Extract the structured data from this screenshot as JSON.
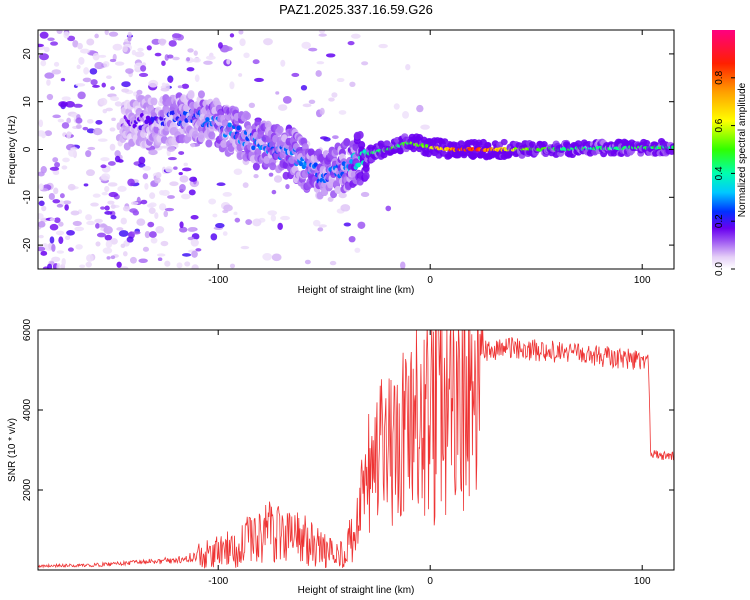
{
  "title": "PAZ1.2025.337.16.59.G26",
  "chart_data": [
    {
      "type": "heatmap",
      "title": "PAZ1.2025.337.16.59.G26",
      "xlabel": "Height of straight line (km)",
      "ylabel": "Frequency (Hz)",
      "xlim": [
        -185,
        115
      ],
      "ylim": [
        -25,
        25
      ],
      "xticks": [
        -100,
        0,
        100
      ],
      "xtick_labels": [
        "-100",
        "0",
        "100"
      ],
      "yticks": [
        -20,
        -10,
        0,
        10,
        20
      ],
      "ytick_labels": [
        "-20",
        "-10",
        "0",
        "10",
        "20"
      ],
      "colorbar": {
        "label": "Normalized spectral amplitude",
        "range": [
          0,
          1
        ],
        "ticks": [
          0.0,
          0.2,
          0.4,
          0.6,
          0.8
        ],
        "tick_labels": [
          "0.0",
          "0.2",
          "0.4",
          "0.6",
          "0.8"
        ],
        "colors": [
          "#ffffff",
          "#e5cff7",
          "#9a52f2",
          "#6a00f0",
          "#0030ff",
          "#00c8ff",
          "#00ffb0",
          "#30ff00",
          "#ffff00",
          "#ffa000",
          "#ff2000",
          "#ff0080"
        ]
      },
      "ridge": {
        "x": [
          -185,
          -150,
          -130,
          -110,
          -95,
          -80,
          -65,
          -50,
          -42,
          -30,
          -20,
          -10,
          0,
          10,
          20,
          40,
          60,
          80,
          100,
          115
        ],
        "freq": [
          3,
          5,
          6,
          7,
          4,
          1,
          -1,
          -6,
          -4,
          -1,
          0,
          1.5,
          0.5,
          0,
          0,
          0,
          0.1,
          0.3,
          0.4,
          0.5
        ],
        "amplitude": [
          0.12,
          0.15,
          0.22,
          0.28,
          0.3,
          0.3,
          0.3,
          0.28,
          0.3,
          0.45,
          0.5,
          0.55,
          0.65,
          0.85,
          0.98,
          0.62,
          0.5,
          0.47,
          0.5,
          0.5
        ]
      }
    },
    {
      "type": "line",
      "title": "",
      "xlabel": "Height of straight line (km)",
      "ylabel": "SNR (10 * v/v)",
      "xlim": [
        -185,
        115
      ],
      "ylim": [
        0,
        6000
      ],
      "xticks": [
        -100,
        0,
        100
      ],
      "xtick_labels": [
        "-100",
        "0",
        "100"
      ],
      "yticks": [
        2000,
        4000,
        6000
      ],
      "ytick_labels": [
        "2000",
        "4000",
        "6000"
      ],
      "color": "#ee3333",
      "series": [
        {
          "name": "SNR",
          "x": [
            -185,
            -160,
            -140,
            -120,
            -110,
            -100,
            -90,
            -80,
            -70,
            -60,
            -55,
            -50,
            -45,
            -40,
            -35,
            -30,
            -25,
            -20,
            -15,
            -10,
            -5,
            0,
            5,
            10,
            15,
            20,
            25,
            30,
            40,
            50,
            60,
            70,
            80,
            90,
            100,
            103,
            104,
            110,
            115
          ],
          "values": [
            100,
            120,
            180,
            250,
            350,
            450,
            600,
            900,
            1000,
            750,
            600,
            500,
            380,
            500,
            900,
            2200,
            2700,
            2800,
            3000,
            3300,
            3600,
            3800,
            4000,
            4200,
            4700,
            5200,
            5450,
            5500,
            5550,
            5500,
            5450,
            5400,
            5350,
            5300,
            5250,
            5200,
            2900,
            2850,
            2850
          ]
        }
      ]
    }
  ]
}
